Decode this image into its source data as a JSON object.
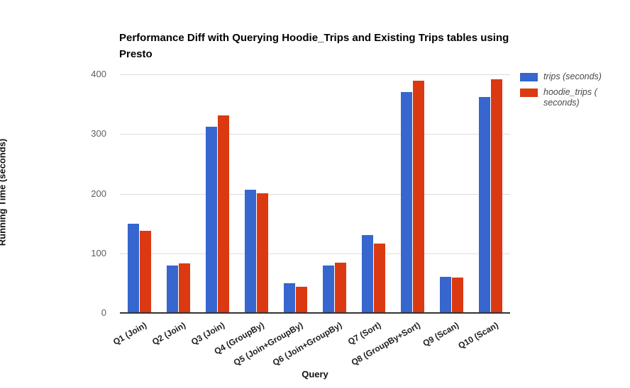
{
  "chart_data": {
    "type": "bar",
    "title": "Performance Diff with Querying Hoodie_Trips and Existing Trips tables using Presto",
    "categories": [
      "Q1 (Join)",
      "Q2 (Join)",
      "Q3 (Join)",
      "Q4 (GroupBy)",
      "Q5 (Join+GroupBy)",
      "Q6 (Join+GroupBy)",
      "Q7 (Sort)",
      "Q8 (GroupBy+Sort)",
      "Q9 (Scan)",
      "Q10 (Scan)"
    ],
    "series": [
      {
        "name": "trips (seconds)",
        "color": "#3666CE",
        "values": [
          150,
          80,
          312,
          207,
          50,
          80,
          130,
          370,
          60,
          362
        ]
      },
      {
        "name": "hoodie_trips (seconds)",
        "color": "#DB3912",
        "values": [
          138,
          83,
          331,
          201,
          44,
          84,
          116,
          389,
          59,
          392
        ]
      }
    ],
    "xlabel": "Query",
    "ylabel": "Running Time (seconds)",
    "ylim": [
      0,
      400
    ],
    "yticks": [
      0,
      100,
      200,
      300,
      400
    ],
    "grid": true,
    "legend_position": "right",
    "legend_items": [
      {
        "lines": [
          "trips (seconds)"
        ],
        "color": "#3666CE"
      },
      {
        "lines": [
          "hoodie_trips (",
          "seconds)"
        ],
        "color": "#DB3912"
      }
    ],
    "colors": {
      "axis_line": "#333333",
      "gridline": "#dcdcdc",
      "tick_text": "#5e5e5e"
    }
  }
}
